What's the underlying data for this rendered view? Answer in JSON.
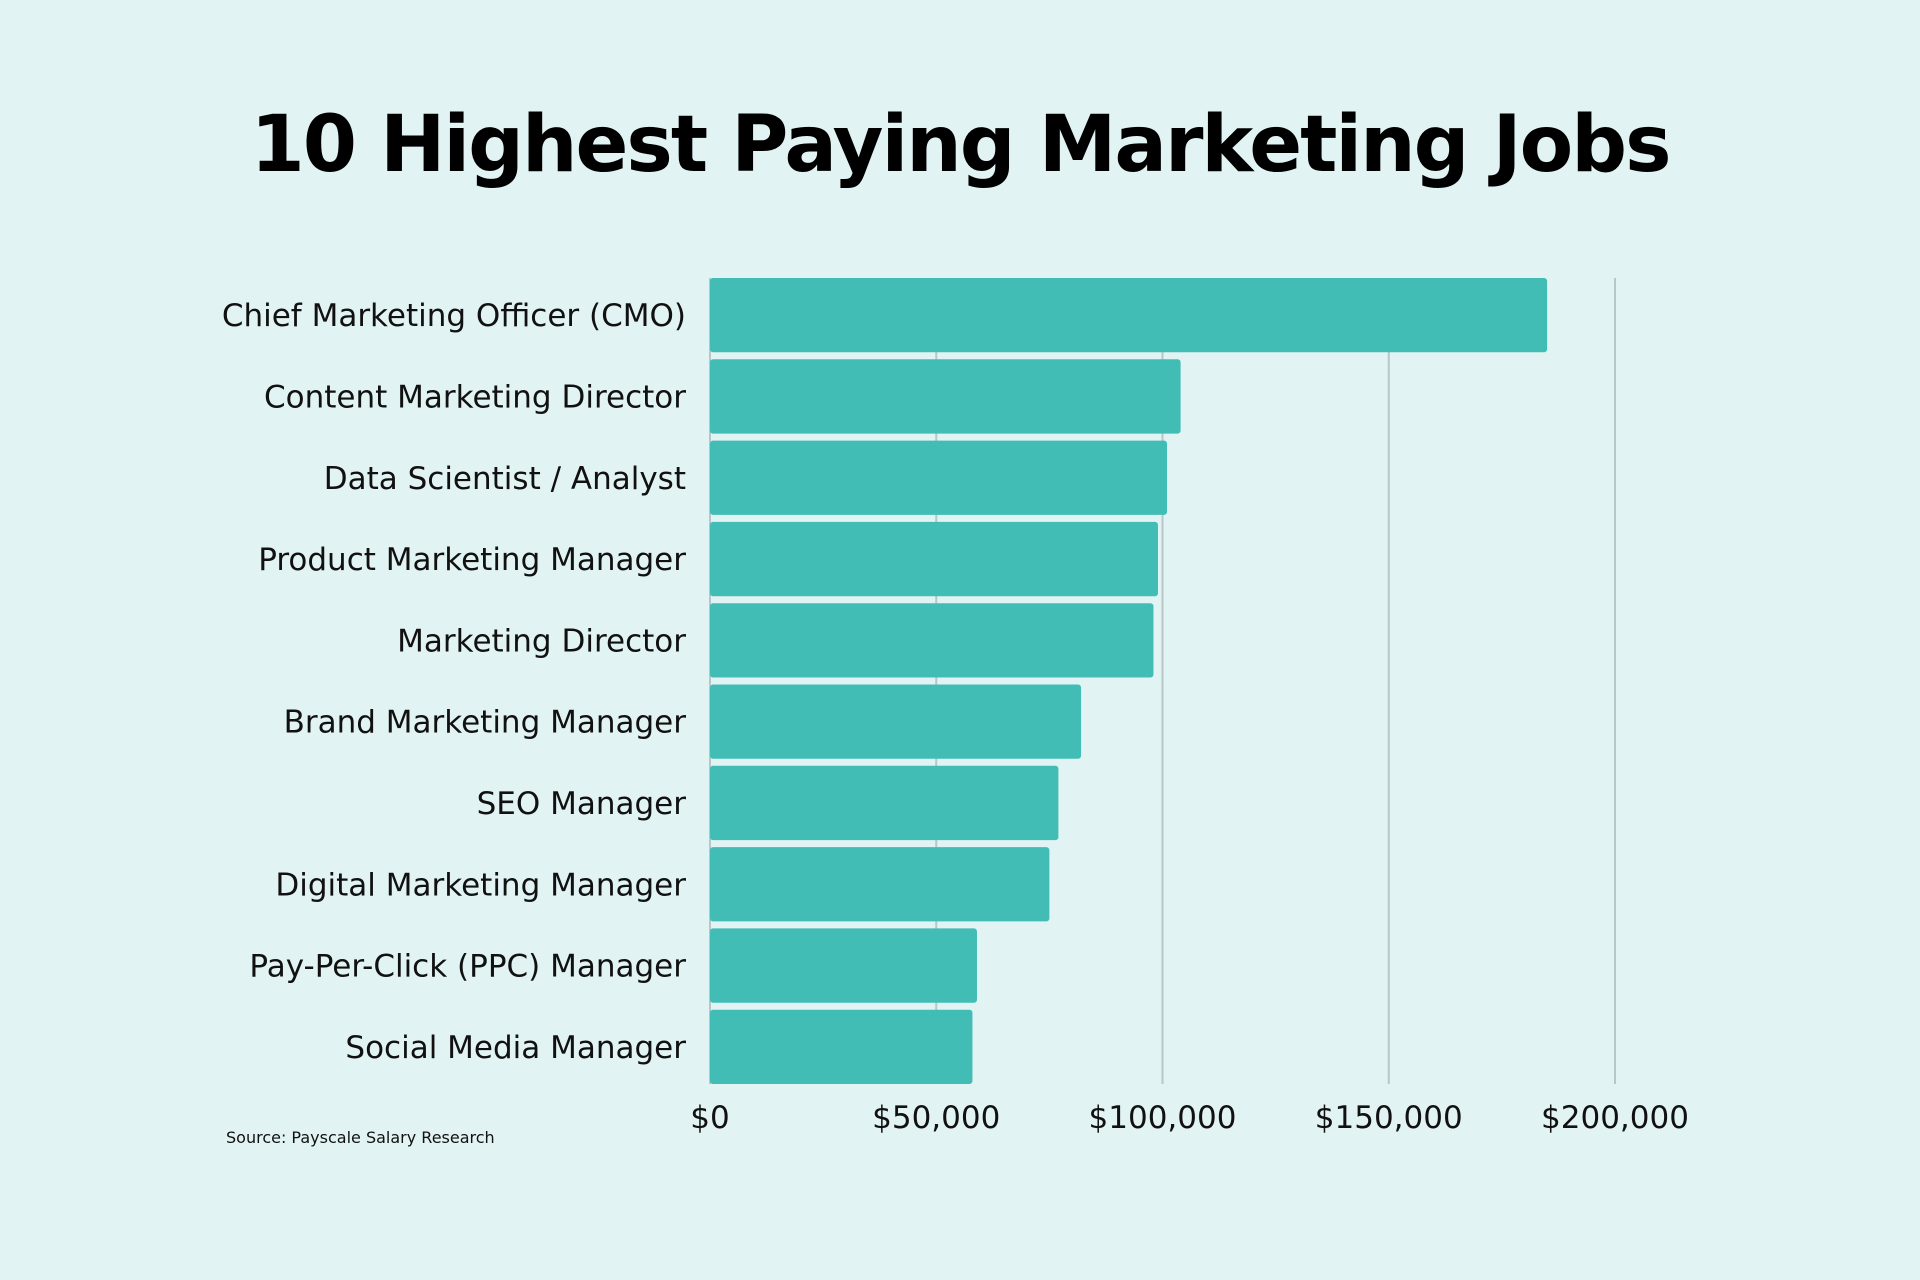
{
  "colors": {
    "background": "#e2f3f4",
    "bar": "#42bdb5",
    "gridline": "#b8c6c8",
    "text": "#111111"
  },
  "chart_data": {
    "type": "bar",
    "orientation": "horizontal",
    "title": "10 Highest Paying Marketing Jobs",
    "categories": [
      "Chief Marketing Officer (CMO)",
      "Content Marketing Director",
      "Data Scientist / Analyst",
      "Product Marketing Manager",
      "Marketing Director",
      "Brand Marketing Manager",
      "SEO Manager",
      "Digital Marketing Manager",
      "Pay-Per-Click (PPC) Manager",
      "Social Media Manager"
    ],
    "values": [
      185000,
      104000,
      101000,
      99000,
      98000,
      82000,
      77000,
      75000,
      59000,
      58000
    ],
    "xlim": [
      0,
      200000
    ],
    "xticks": [
      0,
      50000,
      100000,
      150000,
      200000
    ],
    "xtick_labels": [
      "$0",
      "$50,000",
      "$100,000",
      "$150,000",
      "$200,000"
    ],
    "xlabel": "",
    "ylabel": "",
    "grid": true,
    "source": "Source: Payscale Salary Research"
  }
}
